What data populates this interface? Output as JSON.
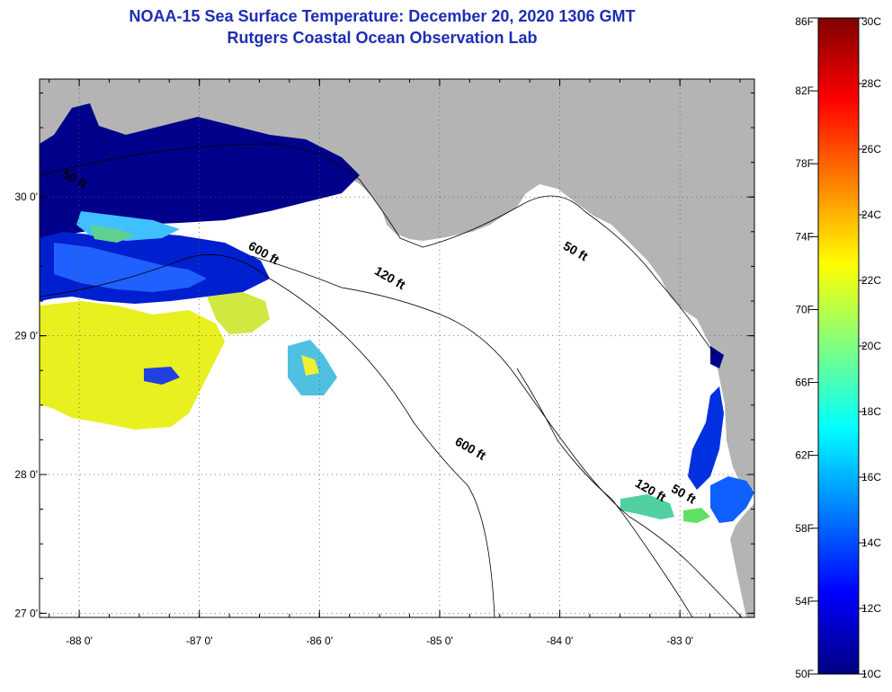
{
  "header": {
    "title": "NOAA-15 Sea Surface Temperature:  December 20, 2020 1306 GMT",
    "subtitle": "Rutgers Coastal Ocean Observation Lab"
  },
  "map": {
    "lon_range": [
      -88.33,
      -82.38
    ],
    "lat_range": [
      26.97,
      30.85
    ],
    "lon_ticks": [
      -88,
      -87,
      -86,
      -85,
      -84,
      -83
    ],
    "lon_tick_labels": [
      "-88 0'",
      "-87 0'",
      "-86 0'",
      "-85 0'",
      "-84 0'",
      "-83 0'"
    ],
    "lat_ticks": [
      30,
      29,
      28,
      27
    ],
    "lat_tick_labels": [
      "30 0'",
      "29 0'",
      "28 0'",
      "27 0'"
    ],
    "grid": "dotted",
    "land_color": "#b4b4b4",
    "isobath_labels": [
      {
        "text": "50 ft",
        "lon": -88.15,
        "lat": 30.15
      },
      {
        "text": "600 ft",
        "lon": -86.6,
        "lat": 29.63
      },
      {
        "text": "120 ft",
        "lon": -85.55,
        "lat": 29.45
      },
      {
        "text": "50 ft",
        "lon": -83.98,
        "lat": 29.63
      },
      {
        "text": "600 ft",
        "lon": -84.88,
        "lat": 28.22
      },
      {
        "text": "120 ft",
        "lon": -83.38,
        "lat": 27.92
      },
      {
        "text": "50 ft",
        "lon": -83.08,
        "lat": 27.88
      }
    ]
  },
  "colorbar": {
    "f_labels": [
      "86F",
      "82F",
      "78F",
      "74F",
      "70F",
      "66F",
      "62F",
      "58F",
      "54F",
      "50F"
    ],
    "c_labels": [
      "30C",
      "28C",
      "26C",
      "24C",
      "22C",
      "20C",
      "18C",
      "16C",
      "14C",
      "12C",
      "10C"
    ],
    "colors": [
      "#800000",
      "#ff0000",
      "#ff8000",
      "#ffff00",
      "#80ff80",
      "#00ffff",
      "#0080ff",
      "#0000ff",
      "#000080"
    ]
  }
}
